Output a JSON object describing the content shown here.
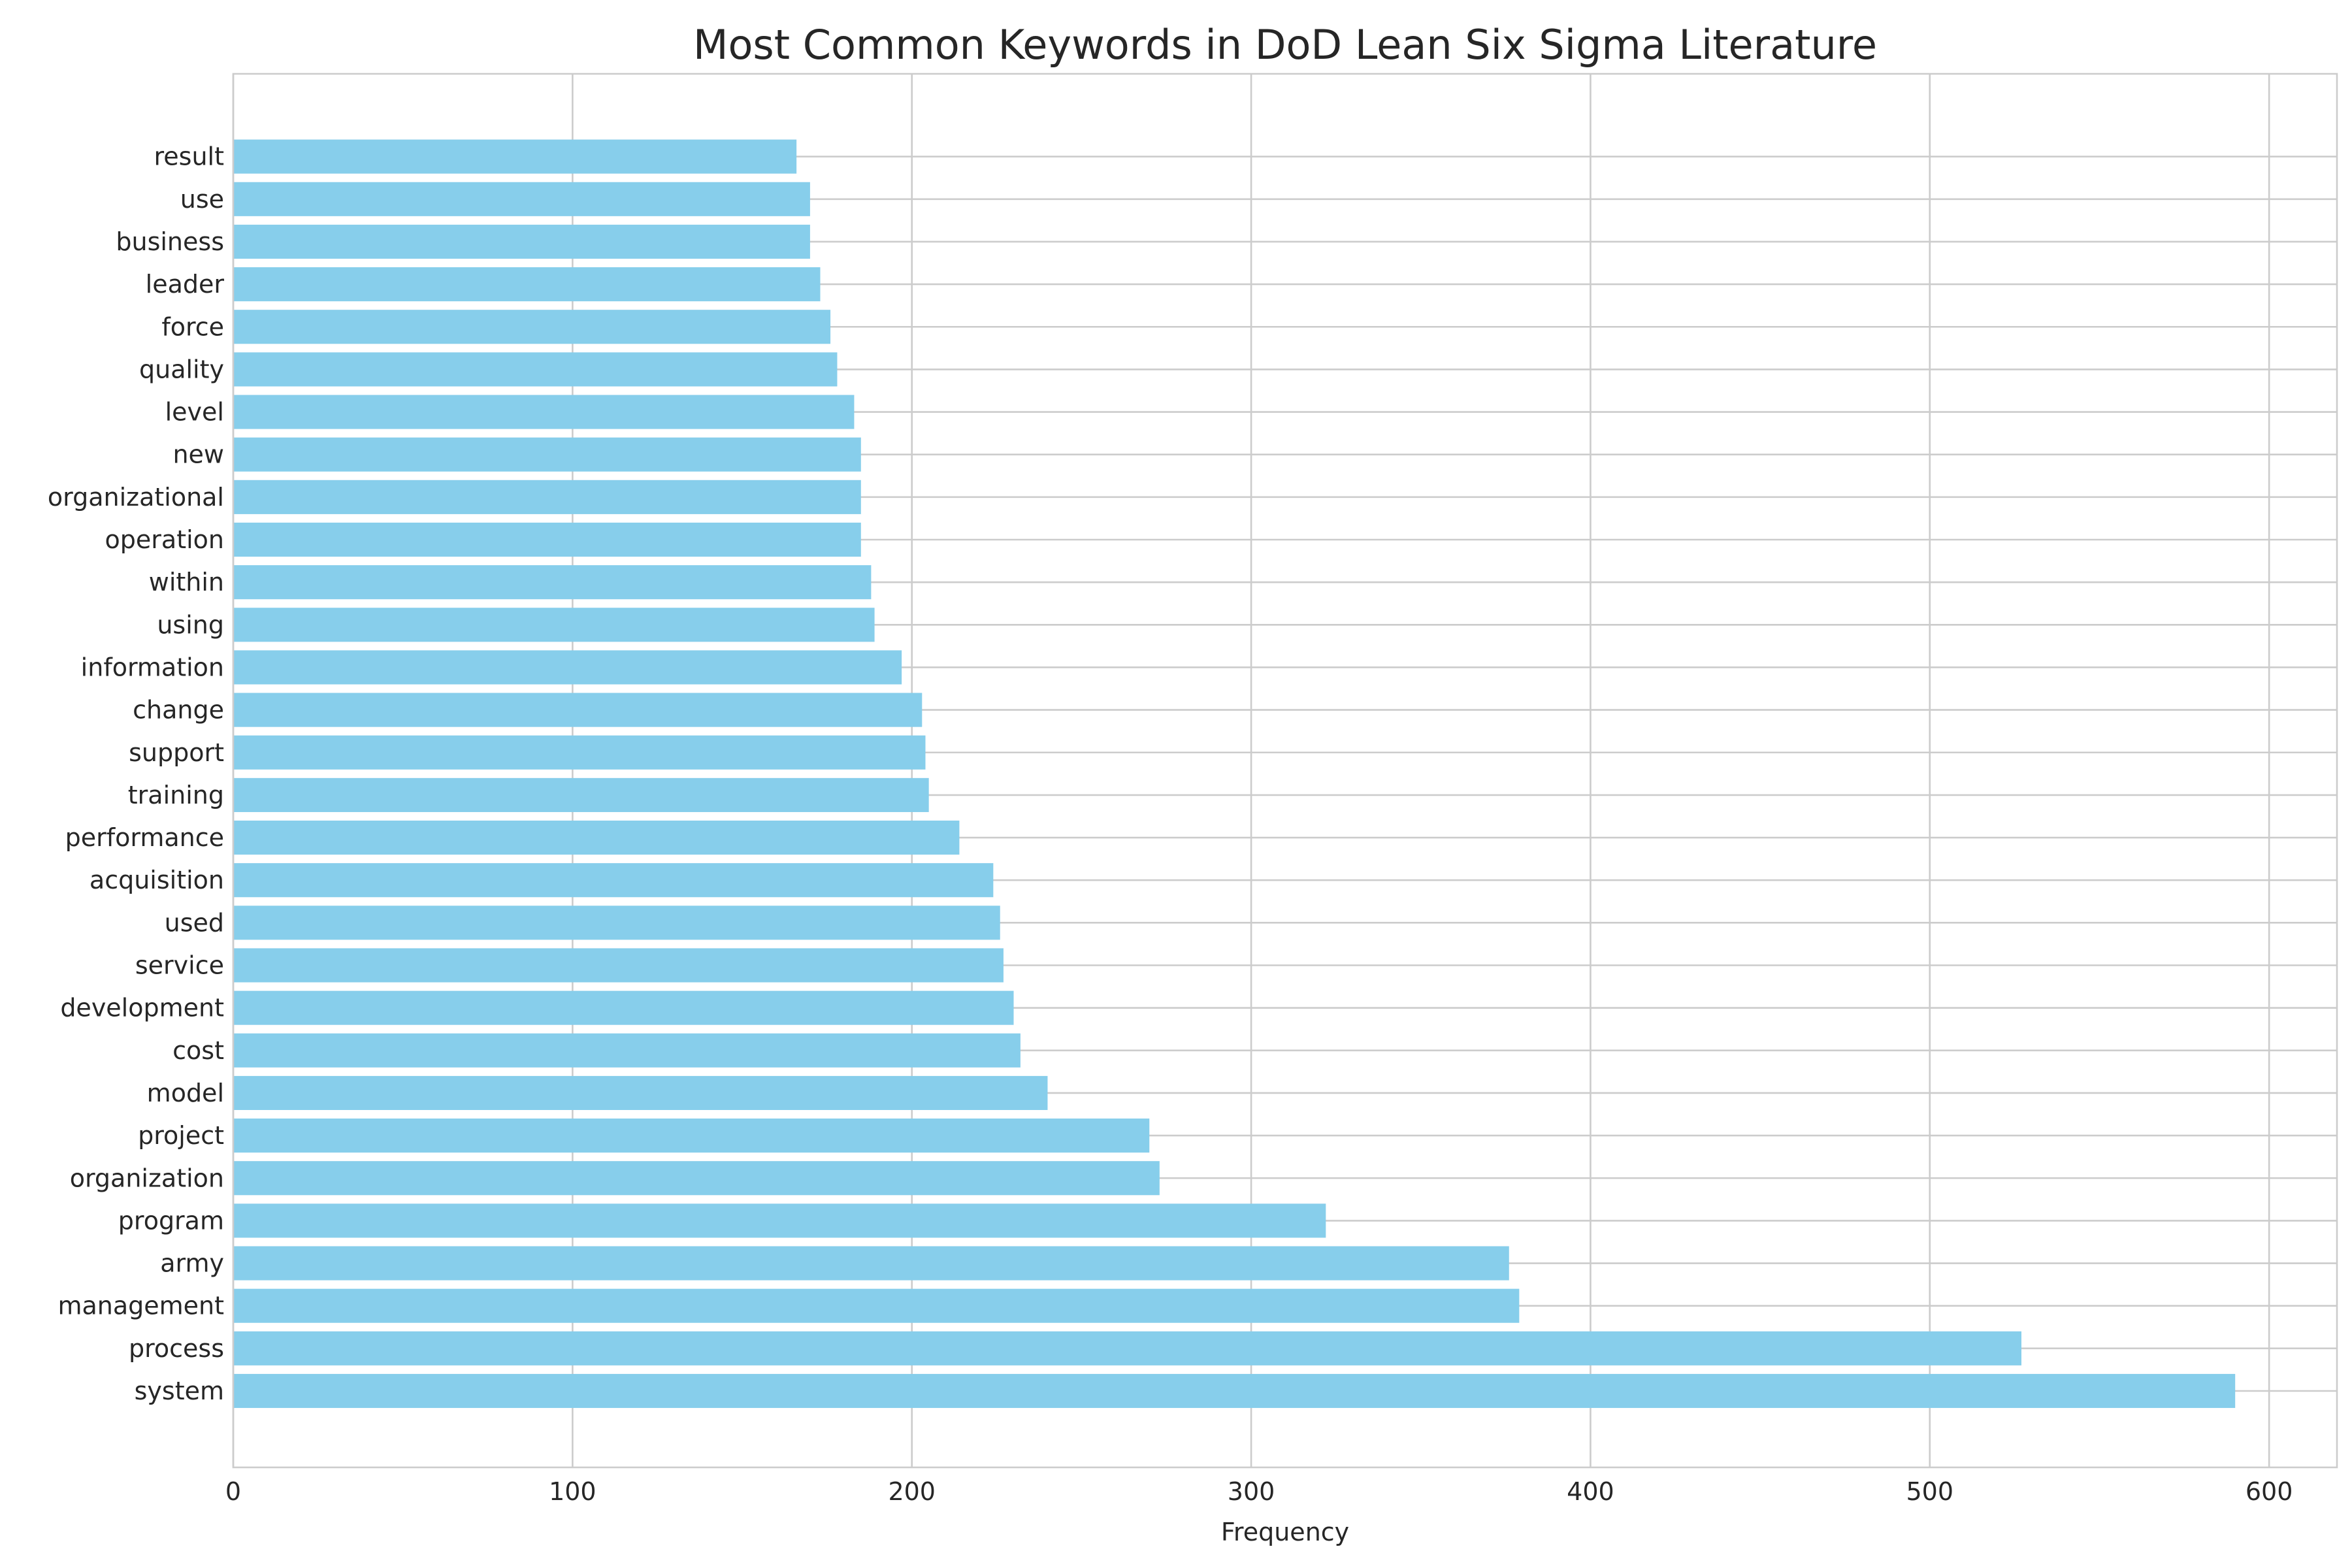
{
  "chart_data": {
    "type": "bar",
    "orientation": "horizontal",
    "title": "Most Common Keywords in DoD Lean Six Sigma Literature",
    "xlabel": "Frequency",
    "ylabel": "",
    "xlim": [
      0,
      620
    ],
    "xticks": [
      0,
      100,
      200,
      300,
      400,
      500,
      600
    ],
    "grid": true,
    "bar_color": "#87ceeb",
    "grid_color": "#cccccc",
    "categories": [
      "system",
      "process",
      "management",
      "army",
      "program",
      "organization",
      "project",
      "model",
      "cost",
      "development",
      "service",
      "used",
      "acquisition",
      "performance",
      "training",
      "support",
      "change",
      "information",
      "using",
      "within",
      "operation",
      "organizational",
      "new",
      "level",
      "quality",
      "force",
      "leader",
      "business",
      "use",
      "result"
    ],
    "values": [
      590,
      527,
      379,
      376,
      322,
      273,
      270,
      240,
      232,
      230,
      227,
      226,
      224,
      214,
      205,
      204,
      203,
      197,
      189,
      188,
      185,
      185,
      185,
      183,
      178,
      176,
      173,
      170,
      170,
      166
    ]
  }
}
